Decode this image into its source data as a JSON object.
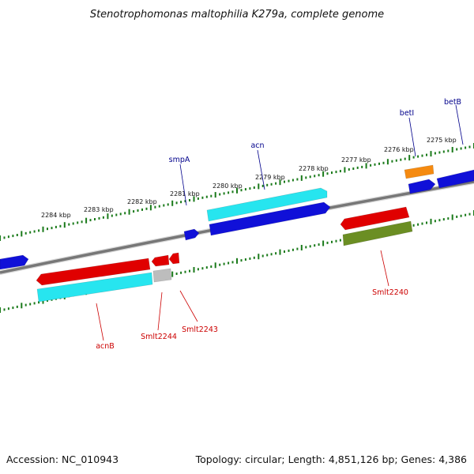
{
  "title": "Stenotrophomonas maltophilia K279a, complete genome",
  "footer": {
    "accession": "Accession: NC_010943",
    "topology": "Topology: circular; Length: 4,851,126 bp; Genes: 4,386"
  },
  "colors": {
    "backbone": "#777777",
    "tick": "#1a7a1a",
    "label_forward": "#00008b",
    "label_reverse": "#cc0000",
    "red": "#e00000",
    "blue": "#1010d8",
    "cyan": "#27e5ef",
    "orange": "#f58a10",
    "olive": "#6b8e23",
    "gray": "#bdbdbd"
  },
  "ruler": {
    "labels": [
      "2284 kbp",
      "2283 kbp",
      "2282 kbp",
      "2281 kbp",
      "2280 kbp",
      "2279 kbp",
      "2278 kbp",
      "2277 kbp",
      "2276 kbp",
      "2275 kbp"
    ]
  },
  "genes": [
    {
      "strand": "forward",
      "color": "blue"
    },
    {
      "strand": "forward",
      "color": "blue"
    },
    {
      "strand": "forward",
      "color": "blue"
    },
    {
      "strand": "forward",
      "color": "orange"
    },
    {
      "strand": "forward",
      "color": "blue"
    },
    {
      "strand": "forward",
      "color": "cyan"
    },
    {
      "strand": "forward",
      "color": "blue"
    },
    {
      "strand": "reverse",
      "color": "red"
    },
    {
      "strand": "reverse",
      "color": "cyan"
    },
    {
      "strand": "reverse",
      "color": "red"
    },
    {
      "strand": "reverse",
      "color": "red"
    },
    {
      "strand": "reverse",
      "color": "gray"
    },
    {
      "strand": "reverse",
      "color": "red"
    },
    {
      "strand": "reverse",
      "color": "olive"
    }
  ],
  "labels": [
    {
      "text": "betB",
      "strand": "forward"
    },
    {
      "text": "betI",
      "strand": "forward"
    },
    {
      "text": "smpA",
      "strand": "forward"
    },
    {
      "text": "acn",
      "strand": "forward"
    },
    {
      "text": "acnB",
      "strand": "reverse"
    },
    {
      "text": "Smlt2244",
      "strand": "reverse"
    },
    {
      "text": "Smlt2243",
      "strand": "reverse"
    },
    {
      "text": "Smlt2240",
      "strand": "reverse"
    }
  ]
}
